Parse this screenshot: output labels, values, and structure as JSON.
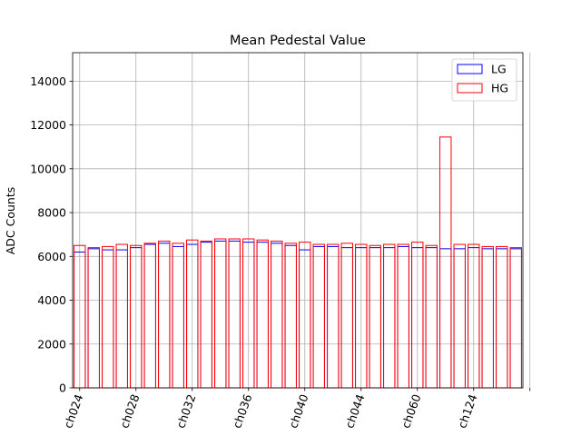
{
  "chart_data": {
    "type": "bar",
    "title": "Mean Pedestal Value",
    "xlabel": "",
    "ylabel": "ADC Counts",
    "ylim": [
      0,
      15300
    ],
    "yticks": [
      0,
      2000,
      4000,
      6000,
      8000,
      10000,
      12000,
      14000
    ],
    "ytick_labels": [
      "0",
      "2000",
      "4000",
      "6000",
      "8000",
      "10000",
      "12000",
      "14000"
    ],
    "xlim": [
      -0.5,
      31.5
    ],
    "xticks": [
      0,
      4,
      8,
      12,
      16,
      20,
      24,
      28,
      32
    ],
    "xtick_labels": [
      "ch024",
      "ch028",
      "ch032",
      "ch036",
      "ch040",
      "ch044",
      "ch060",
      "ch124",
      ""
    ],
    "bar_count": 32,
    "grid": true,
    "legend_position": "top-right",
    "series": [
      {
        "name": "LG",
        "color": "#0000ff",
        "values": [
          6200,
          6350,
          6300,
          6300,
          6400,
          6550,
          6600,
          6450,
          6550,
          6650,
          6700,
          6700,
          6650,
          6650,
          6600,
          6500,
          6300,
          6450,
          6450,
          6400,
          6400,
          6400,
          6400,
          6450,
          6400,
          6400,
          6350,
          6350,
          6400,
          6350,
          6350,
          6350
        ]
      },
      {
        "name": "HG",
        "color": "#ff0000",
        "values": [
          6500,
          6400,
          6450,
          6550,
          6500,
          6600,
          6700,
          6600,
          6750,
          6700,
          6800,
          6800,
          6800,
          6750,
          6700,
          6600,
          6650,
          6550,
          6550,
          6600,
          6550,
          6500,
          6550,
          6550,
          6650,
          6500,
          11450,
          6550,
          6550,
          6450,
          6450,
          6400
        ]
      }
    ]
  }
}
